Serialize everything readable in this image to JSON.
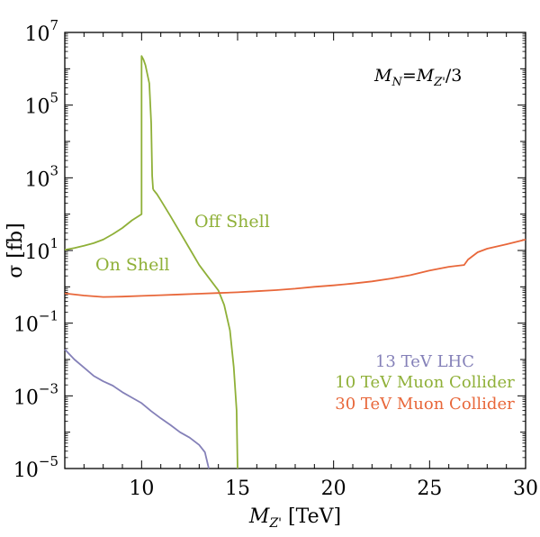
{
  "chart_data": {
    "type": "line",
    "x_title_main": "M",
    "x_title_sub": "Z'",
    "x_title_unit": " [TeV]",
    "y_title": "σ [fb]",
    "annotation": {
      "main1": "M",
      "sub1": "N",
      "eq": "=",
      "main2": "M",
      "sub2": "Z'",
      "tail": "/3"
    },
    "xlim": [
      6,
      30
    ],
    "ylog_range": [
      -5,
      7
    ],
    "x_ticks": [
      {
        "value": 10,
        "label": "10"
      },
      {
        "value": 15,
        "label": "15"
      },
      {
        "value": 20,
        "label": "20"
      },
      {
        "value": 25,
        "label": "25"
      },
      {
        "value": 30,
        "label": "30"
      }
    ],
    "y_ticks": [
      {
        "exp": 7,
        "base": "10",
        "sup": "7"
      },
      {
        "exp": 5,
        "base": "10",
        "sup": "5"
      },
      {
        "exp": 3,
        "base": "10",
        "sup": "3"
      },
      {
        "exp": 1,
        "base": "10",
        "sup": "1"
      },
      {
        "exp": -1,
        "base": "10",
        "sup": "−1"
      },
      {
        "exp": -3,
        "base": "10",
        "sup": "−3"
      },
      {
        "exp": -5,
        "base": "10",
        "sup": "−5"
      }
    ],
    "colors": {
      "lhc": "#8480b8",
      "muon10": "#8fb038",
      "muon30": "#e8673a"
    },
    "legend": [
      {
        "label": "13 TeV LHC",
        "color_key": "lhc"
      },
      {
        "label": "10 TeV Muon Collider",
        "color_key": "muon10"
      },
      {
        "label": "30 TeV Muon Collider",
        "color_key": "muon30"
      }
    ],
    "labels": {
      "on_shell": "On Shell",
      "off_shell": "Off Shell"
    },
    "series": [
      {
        "name": "13 TeV LHC",
        "color_key": "lhc",
        "dashed": false,
        "points": [
          [
            6.0,
            -1.72
          ],
          [
            6.5,
            -2.0
          ],
          [
            7.0,
            -2.22
          ],
          [
            7.5,
            -2.45
          ],
          [
            8.0,
            -2.6
          ],
          [
            8.5,
            -2.72
          ],
          [
            9.0,
            -2.9
          ],
          [
            9.5,
            -3.05
          ],
          [
            10.0,
            -3.2
          ],
          [
            10.5,
            -3.42
          ],
          [
            11.0,
            -3.62
          ],
          [
            11.5,
            -3.8
          ],
          [
            12.0,
            -4.0
          ],
          [
            12.5,
            -4.15
          ],
          [
            13.0,
            -4.35
          ],
          [
            13.3,
            -4.55
          ],
          [
            13.5,
            -5.0
          ]
        ]
      },
      {
        "name": "10 TeV Muon Collider off-shell",
        "color_key": "muon10",
        "dashed": false,
        "points": [
          [
            10.6,
            2.68
          ],
          [
            10.8,
            2.55
          ],
          [
            11.0,
            2.38
          ],
          [
            11.5,
            1.95
          ],
          [
            12.0,
            1.5
          ],
          [
            12.5,
            1.05
          ],
          [
            13.0,
            0.6
          ],
          [
            13.5,
            0.25
          ],
          [
            14.0,
            -0.1
          ],
          [
            14.3,
            -0.5
          ],
          [
            14.6,
            -1.2
          ],
          [
            14.8,
            -2.2
          ],
          [
            14.95,
            -3.4
          ],
          [
            15.0,
            -5.0
          ]
        ]
      },
      {
        "name": "10 TeV Muon Collider on-shell",
        "color_key": "muon10",
        "dashed": false,
        "points": [
          [
            6.0,
            1.02
          ],
          [
            6.5,
            1.07
          ],
          [
            7.0,
            1.13
          ],
          [
            7.5,
            1.2
          ],
          [
            8.0,
            1.3
          ],
          [
            8.5,
            1.45
          ],
          [
            9.0,
            1.62
          ],
          [
            9.5,
            1.83
          ],
          [
            10.0,
            2.0
          ],
          [
            10.0,
            6.35
          ],
          [
            10.1,
            6.25
          ],
          [
            10.2,
            6.1
          ],
          [
            10.4,
            5.6
          ],
          [
            10.5,
            4.5
          ],
          [
            10.55,
            3.05
          ],
          [
            10.6,
            2.68
          ]
        ]
      },
      {
        "name": "10 TeV Muon Collider on-shell gap",
        "color_key": "muon10",
        "dashed": true,
        "points": [
          [
            10.0,
            2.0
          ],
          [
            10.0,
            6.35
          ]
        ]
      },
      {
        "name": "30 TeV Muon Collider",
        "color_key": "muon30",
        "dashed": false,
        "points": [
          [
            6.0,
            -0.18
          ],
          [
            7.0,
            -0.24
          ],
          [
            8.0,
            -0.28
          ],
          [
            9.0,
            -0.27
          ],
          [
            10.0,
            -0.25
          ],
          [
            11.0,
            -0.23
          ],
          [
            12.0,
            -0.21
          ],
          [
            13.0,
            -0.19
          ],
          [
            14.0,
            -0.17
          ],
          [
            15.0,
            -0.15
          ],
          [
            16.0,
            -0.12
          ],
          [
            17.0,
            -0.09
          ],
          [
            18.0,
            -0.05
          ],
          [
            19.0,
            0.0
          ],
          [
            20.0,
            0.04
          ],
          [
            21.0,
            0.09
          ],
          [
            22.0,
            0.15
          ],
          [
            23.0,
            0.23
          ],
          [
            24.0,
            0.32
          ],
          [
            25.0,
            0.45
          ],
          [
            26.0,
            0.55
          ],
          [
            26.8,
            0.6
          ],
          [
            27.0,
            0.75
          ],
          [
            27.5,
            0.95
          ],
          [
            28.0,
            1.05
          ],
          [
            29.0,
            1.17
          ],
          [
            30.0,
            1.3
          ]
        ]
      }
    ]
  }
}
